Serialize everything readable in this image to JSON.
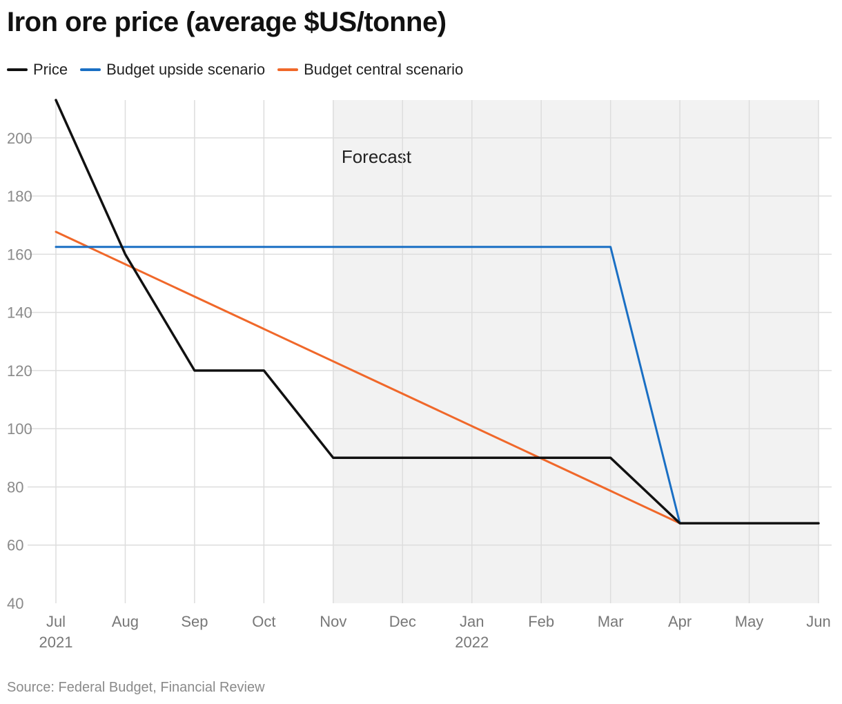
{
  "title": "Iron ore price (average $US/tonne)",
  "source": "Source: Federal Budget, Financial Review",
  "chart_data": {
    "type": "line",
    "x": [
      "2021-07",
      "2021-08",
      "2021-09",
      "2021-10",
      "2021-11",
      "2021-12",
      "2022-01",
      "2022-02",
      "2022-03",
      "2022-04",
      "2022-05",
      "2022-06"
    ],
    "x_tick_labels": [
      "Jul",
      "Aug",
      "Sep",
      "Oct",
      "Nov",
      "Dec",
      "Jan",
      "Feb",
      "Mar",
      "Apr",
      "May",
      "Jun"
    ],
    "x_year_labels": [
      {
        "at": "2021-07",
        "text": "2021"
      },
      {
        "at": "2022-01",
        "text": "2022"
      }
    ],
    "ylim": [
      40,
      213
    ],
    "y_ticks": [
      40,
      60,
      80,
      100,
      120,
      140,
      160,
      180,
      200
    ],
    "grid": true,
    "legend_position": "top-left",
    "series": [
      {
        "name": "Price",
        "color": "#111111",
        "x": [
          "2021-07",
          "2021-08",
          "2021-09",
          "2021-10",
          "2021-11",
          "2022-03",
          "2022-04",
          "2022-06"
        ],
        "values": [
          213,
          160,
          120,
          120,
          90,
          90,
          67.5,
          67.5
        ]
      },
      {
        "name": "Budget upside scenario",
        "color": "#1a6fc4",
        "x": [
          "2021-07",
          "2022-03",
          "2022-04"
        ],
        "values": [
          162.5,
          162.5,
          67.5
        ]
      },
      {
        "name": "Budget central scenario",
        "color": "#f0682a",
        "x": [
          "2021-07",
          "2022-04"
        ],
        "values": [
          167.7,
          67.5
        ]
      }
    ],
    "shaded_region": {
      "from": "2021-11",
      "to": "2022-06",
      "label": "Forecast",
      "color": "#f2f2f2"
    }
  }
}
